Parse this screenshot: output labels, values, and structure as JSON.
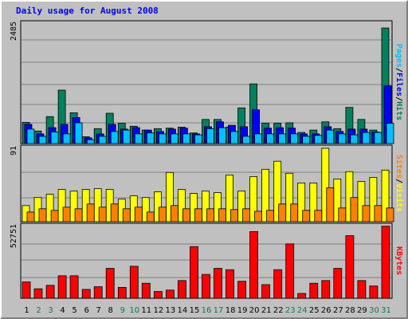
{
  "title": "Daily usage for August 2008",
  "colors": {
    "hits": "#00805c",
    "files": "#0000ff",
    "pages": "#00c0ff",
    "visits": "#ffff00",
    "sites": "#ff8000",
    "kbytes": "#ff0000",
    "weekend_day": "#00805c",
    "weekday_day": "#000000"
  },
  "chart_data": [
    {
      "type": "bar",
      "categories": [
        "1",
        "2",
        "3",
        "4",
        "5",
        "6",
        "7",
        "8",
        "9",
        "10",
        "11",
        "12",
        "13",
        "14",
        "15",
        "16",
        "17",
        "18",
        "19",
        "20",
        "21",
        "22",
        "23",
        "24",
        "25",
        "26",
        "27",
        "28",
        "29",
        "30",
        "31"
      ],
      "weekend_days": [
        "2",
        "3",
        "9",
        "10",
        "16",
        "17",
        "23",
        "24",
        "30",
        "31"
      ],
      "y_tick_label": "2485",
      "ylim": [
        0,
        2485
      ],
      "series": [
        {
          "name": "Hits",
          "values": [
            440,
            260,
            560,
            1110,
            640,
            140,
            310,
            630,
            420,
            360,
            280,
            310,
            320,
            340,
            220,
            500,
            500,
            340,
            740,
            1240,
            420,
            420,
            430,
            230,
            280,
            450,
            310,
            750,
            500,
            280,
            2400
          ]
        },
        {
          "name": "Files",
          "values": [
            400,
            200,
            330,
            400,
            540,
            120,
            200,
            400,
            300,
            330,
            280,
            250,
            300,
            320,
            200,
            350,
            450,
            380,
            350,
            700,
            320,
            330,
            320,
            200,
            200,
            350,
            250,
            300,
            300,
            240,
            1200
          ]
        },
        {
          "name": "Pages",
          "values": [
            300,
            150,
            240,
            200,
            430,
            80,
            150,
            250,
            280,
            200,
            220,
            200,
            200,
            200,
            180,
            310,
            330,
            250,
            150,
            200,
            200,
            200,
            200,
            150,
            170,
            280,
            200,
            180,
            230,
            230,
            420
          ]
        }
      ]
    },
    {
      "type": "bar",
      "categories": [
        "1",
        "2",
        "3",
        "4",
        "5",
        "6",
        "7",
        "8",
        "9",
        "10",
        "11",
        "12",
        "13",
        "14",
        "15",
        "16",
        "17",
        "18",
        "19",
        "20",
        "21",
        "22",
        "23",
        "24",
        "25",
        "26",
        "27",
        "28",
        "29",
        "30",
        "31"
      ],
      "y_tick_label": "91",
      "ylim": [
        0,
        91
      ],
      "series": [
        {
          "name": "Visits",
          "values": [
            20,
            30,
            34,
            40,
            38,
            40,
            41,
            40,
            28,
            32,
            30,
            37,
            61,
            40,
            35,
            38,
            36,
            58,
            38,
            56,
            65,
            75,
            60,
            48,
            48,
            91,
            53,
            62,
            50,
            55,
            64
          ]
        },
        {
          "name": "Sites",
          "values": [
            12,
            16,
            14,
            18,
            16,
            22,
            18,
            22,
            16,
            18,
            12,
            18,
            20,
            16,
            16,
            16,
            16,
            15,
            16,
            13,
            14,
            22,
            22,
            14,
            14,
            42,
            17,
            30,
            20,
            20,
            17
          ]
        }
      ]
    },
    {
      "type": "bar",
      "categories": [
        "1",
        "2",
        "3",
        "4",
        "5",
        "6",
        "7",
        "8",
        "9",
        "10",
        "11",
        "12",
        "13",
        "14",
        "15",
        "16",
        "17",
        "18",
        "19",
        "20",
        "21",
        "22",
        "23",
        "24",
        "25",
        "26",
        "27",
        "28",
        "29",
        "30",
        "31"
      ],
      "y_tick_label": "52751",
      "ylim": [
        0,
        52751
      ],
      "series": [
        {
          "name": "KBytes",
          "values": [
            12000,
            7000,
            9500,
            16500,
            16500,
            6500,
            8500,
            22000,
            8000,
            23500,
            11000,
            5000,
            6000,
            13000,
            38000,
            17500,
            22000,
            21000,
            12500,
            49000,
            10000,
            21000,
            40000,
            3500,
            11000,
            13000,
            22000,
            46000,
            13000,
            9000,
            53000
          ]
        }
      ]
    }
  ]
}
